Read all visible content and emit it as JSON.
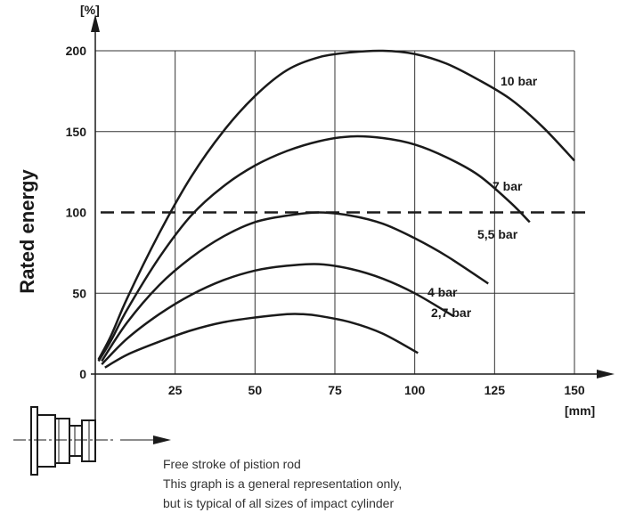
{
  "chart_data": {
    "type": "line",
    "ylabel": "Rated energy",
    "y_unit": "[%]",
    "x_unit": "[mm]",
    "xlim": [
      0,
      150
    ],
    "ylim": [
      0,
      200
    ],
    "x_ticks": [
      "25",
      "50",
      "75",
      "100",
      "125",
      "150"
    ],
    "y_ticks": [
      "0",
      "50",
      "100",
      "150",
      "200"
    ],
    "grid": true,
    "reference_line": {
      "y": 100,
      "style": "dashed"
    },
    "series": [
      {
        "name": "10 bar",
        "x": [
          1,
          5,
          10,
          20,
          30,
          40,
          50,
          60,
          70,
          80,
          90,
          100,
          110,
          120,
          130,
          140,
          150
        ],
        "y": [
          9,
          24,
          47,
          87,
          122,
          150,
          172,
          188,
          196,
          199,
          200,
          198,
          192,
          182,
          170,
          153,
          132
        ]
      },
      {
        "name": "7 bar",
        "x": [
          1,
          5,
          10,
          20,
          30,
          40,
          50,
          60,
          70,
          80,
          90,
          100,
          110,
          120,
          130,
          136
        ],
        "y": [
          8,
          21,
          40,
          72,
          98,
          116,
          129,
          138,
          144,
          147,
          146,
          142,
          134,
          123,
          106,
          94
        ]
      },
      {
        "name": "5,5 bar",
        "x": [
          2,
          10,
          20,
          30,
          40,
          50,
          60,
          70,
          80,
          90,
          100,
          110,
          123
        ],
        "y": [
          8,
          32,
          55,
          72,
          85,
          94,
          98,
          100,
          98,
          93,
          84,
          73,
          56
        ]
      },
      {
        "name": "4 bar",
        "x": [
          2,
          10,
          20,
          30,
          40,
          50,
          60,
          70,
          80,
          90,
          100,
          112
        ],
        "y": [
          6,
          22,
          37,
          49,
          58,
          64,
          67,
          68,
          65,
          59,
          50,
          36
        ]
      },
      {
        "name": "2,7 bar",
        "x": [
          3,
          10,
          20,
          30,
          40,
          50,
          60,
          65,
          70,
          80,
          90,
          101
        ],
        "y": [
          4,
          12,
          20,
          27,
          32,
          35,
          37,
          37,
          36,
          32,
          25,
          13
        ]
      }
    ]
  },
  "notes": [
    "Free stroke of pistion rod",
    "This graph is a general representation only,",
    "but is typical of all sizes of impact cylinder"
  ]
}
